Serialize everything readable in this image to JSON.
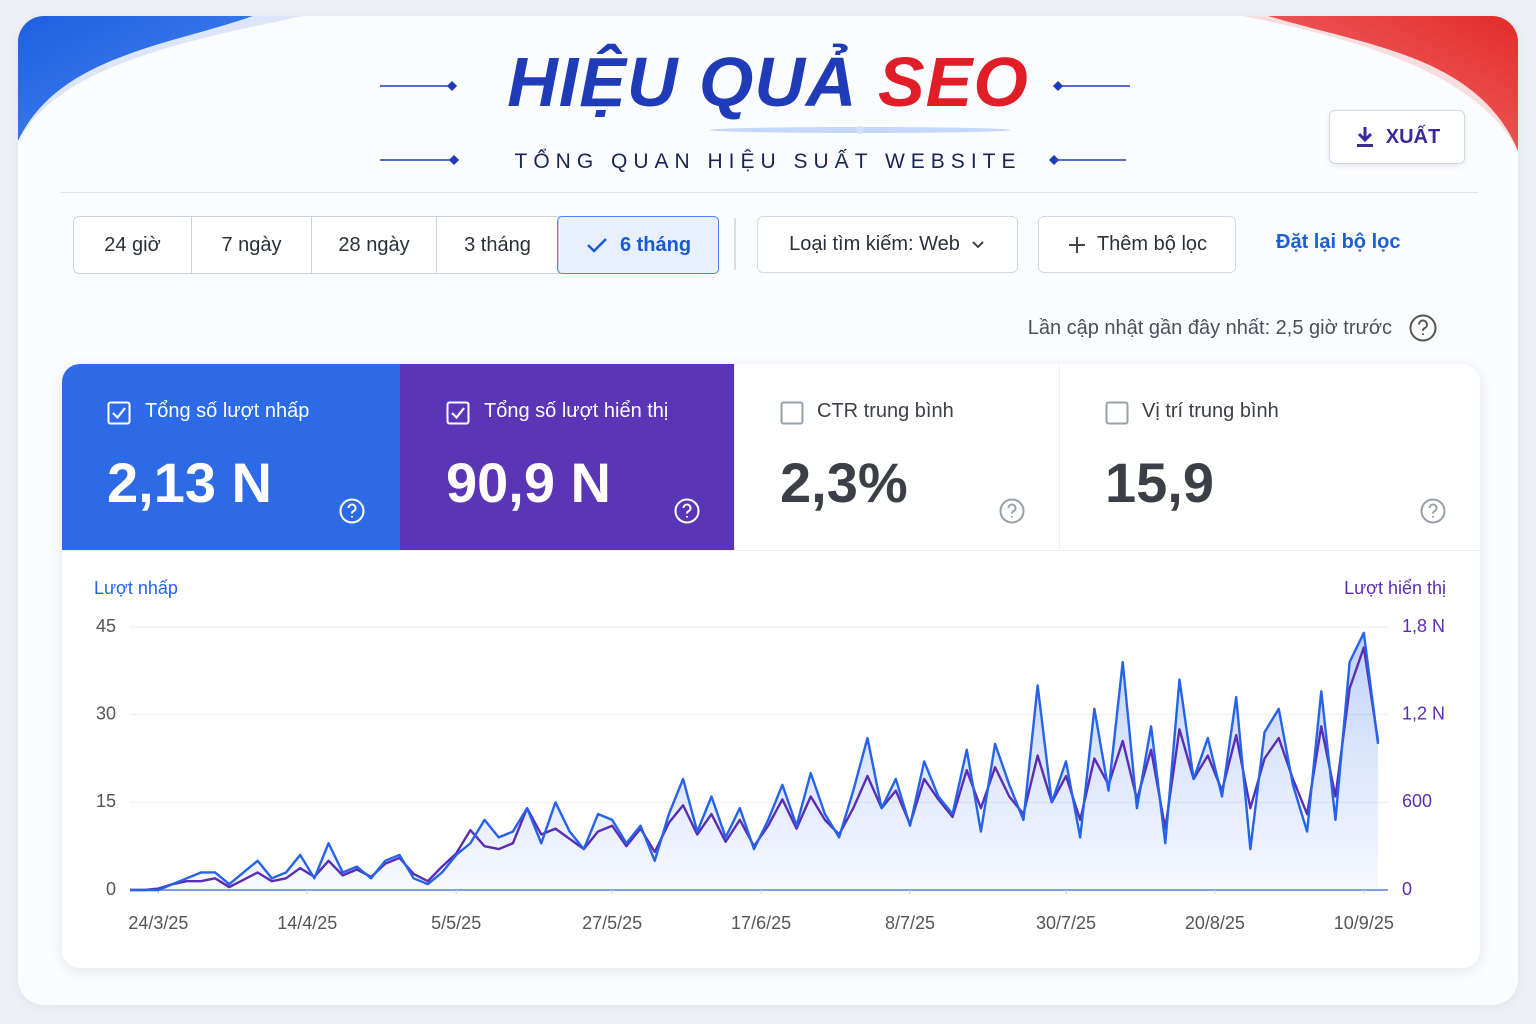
{
  "header": {
    "title": "HIỆU QUẢ",
    "title_accent": "SEO",
    "subtitle": "TỔNG QUAN HIỆU SUẤT WEBSITE",
    "export_button": "XUẤT"
  },
  "filters": {
    "ranges": [
      "24 giờ",
      "7 ngày",
      "28 ngày",
      "3 tháng",
      "6 tháng"
    ],
    "selected_range": 4,
    "search_type": "Loại tìm kiếm: Web",
    "add_filter": "Thêm bộ lọc",
    "reset": "Đặt lại bộ lọc"
  },
  "last_updated": "Lần cập nhật gần đây nhất: 2,5 giờ trước",
  "metrics": [
    {
      "label": "Tổng số lượt nhấp",
      "value": "2,13 N",
      "checked": true,
      "color": "#2d6be6"
    },
    {
      "label": "Tổng số lượt hiển thị",
      "value": "90,9 N",
      "checked": true,
      "color": "#5a36b6"
    },
    {
      "label": "CTR trung bình",
      "value": "2,3%",
      "checked": false
    },
    {
      "label": "Vị trí trung bình",
      "value": "15,9",
      "checked": false
    }
  ],
  "chart_data": {
    "type": "line",
    "x": [
      "20/3/25",
      "22/3/25",
      "24/3/25",
      "26/3/25",
      "28/3/25",
      "30/3/25",
      "1/4/25",
      "3/4/25",
      "5/4/25",
      "7/4/25",
      "9/4/25",
      "11/4/25",
      "13/4/25",
      "15/4/25",
      "17/4/25",
      "19/4/25",
      "21/4/25",
      "23/4/25",
      "25/4/25",
      "27/4/25",
      "29/4/25",
      "1/5/25",
      "3/5/25",
      "5/5/25",
      "7/5/25",
      "9/5/25",
      "11/5/25",
      "13/5/25",
      "15/5/25",
      "17/5/25",
      "19/5/25",
      "21/5/25",
      "23/5/25",
      "25/5/25",
      "27/5/25",
      "29/5/25",
      "31/5/25",
      "2/6/25",
      "4/6/25",
      "6/6/25",
      "8/6/25",
      "10/6/25",
      "12/6/25",
      "14/6/25",
      "16/6/25",
      "18/6/25",
      "20/6/25",
      "22/6/25",
      "24/6/25",
      "26/6/25",
      "28/6/25",
      "30/6/25",
      "2/7/25",
      "4/7/25",
      "6/7/25",
      "8/7/25",
      "10/7/25",
      "12/7/25",
      "14/7/25",
      "16/7/25",
      "18/7/25",
      "20/7/25",
      "22/7/25",
      "24/7/25",
      "26/7/25",
      "28/7/25",
      "30/7/25",
      "1/8/25",
      "3/8/25",
      "5/8/25",
      "7/8/25",
      "9/8/25",
      "11/8/25",
      "13/8/25",
      "15/8/25",
      "17/8/25",
      "19/8/25",
      "21/8/25",
      "23/8/25",
      "25/8/25",
      "27/8/25",
      "29/8/25",
      "31/8/25",
      "2/9/25",
      "4/9/25",
      "6/9/25",
      "8/9/25",
      "10/9/25",
      "12/9/25"
    ],
    "xlim": [
      "20/3/25",
      "12/9/25"
    ],
    "xticks": [
      "24/3/25",
      "14/4/25",
      "5/5/25",
      "27/5/25",
      "17/6/25",
      "8/7/25",
      "30/7/25",
      "20/8/25",
      "10/9/25"
    ],
    "ylim": [
      0,
      45
    ],
    "yticks": [
      0,
      15,
      30,
      45
    ],
    "y2lim": [
      0,
      1800
    ],
    "y2ticks": [
      0,
      600,
      {
        "value": 1200,
        "label": "1,2 N"
      },
      {
        "value": 1800,
        "label": "1,8 N"
      }
    ],
    "grid": true,
    "series": [
      {
        "name": "Lượt nhấp",
        "color": "#2563eb",
        "area": true,
        "values": [
          0,
          0,
          0,
          1,
          2,
          3,
          3,
          1,
          3,
          5,
          2,
          3,
          6,
          2,
          8,
          3,
          4,
          2,
          5,
          6,
          2,
          1,
          3,
          6,
          8,
          12,
          9,
          10,
          14,
          8,
          15,
          10,
          7,
          13,
          12,
          8,
          11,
          5,
          13,
          19,
          10,
          16,
          9,
          14,
          7,
          12,
          18,
          11,
          20,
          13,
          9,
          17,
          26,
          14,
          19,
          11,
          22,
          16,
          13,
          24,
          10,
          25,
          18,
          12,
          35,
          15,
          22,
          9,
          31,
          17,
          39,
          14,
          28,
          8,
          36,
          19,
          26,
          16,
          33,
          7,
          27,
          31,
          18,
          10,
          34,
          12,
          39,
          44,
          25
        ]
      },
      {
        "name": "Lượt hiển thị",
        "color": "#5b2db3",
        "axis": "y2",
        "values": [
          0,
          0,
          10,
          40,
          60,
          60,
          80,
          20,
          70,
          120,
          60,
          80,
          150,
          90,
          200,
          100,
          140,
          90,
          180,
          220,
          110,
          60,
          160,
          250,
          410,
          300,
          280,
          320,
          560,
          380,
          420,
          350,
          280,
          400,
          440,
          300,
          420,
          260,
          460,
          580,
          380,
          520,
          330,
          480,
          300,
          440,
          620,
          420,
          640,
          480,
          380,
          560,
          780,
          560,
          680,
          450,
          760,
          620,
          500,
          820,
          560,
          840,
          640,
          520,
          920,
          600,
          780,
          480,
          900,
          720,
          1020,
          620,
          960,
          420,
          1100,
          760,
          920,
          680,
          1060,
          560,
          900,
          1040,
          760,
          520,
          1120,
          640,
          1380,
          1660,
          1020
        ]
      }
    ]
  }
}
